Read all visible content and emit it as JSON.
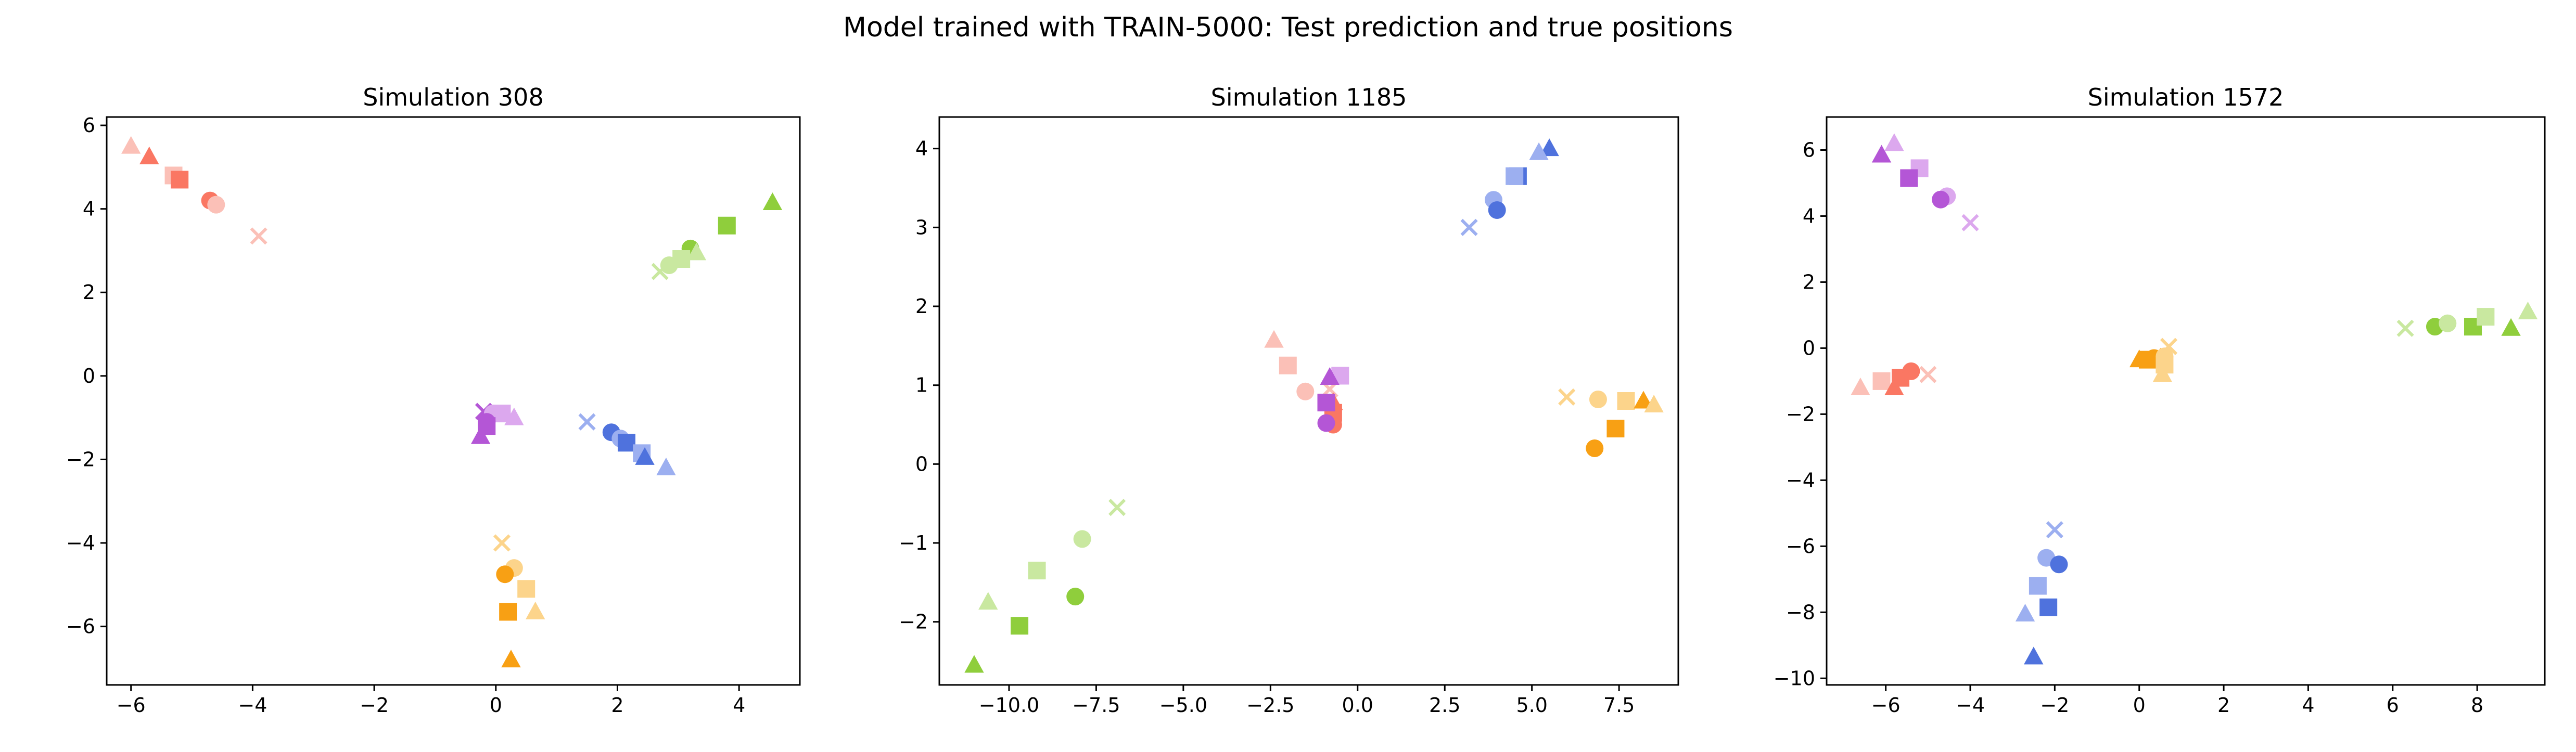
{
  "figure": {
    "title": "Model trained with TRAIN-5000: Test prediction and true positions"
  },
  "colors": {
    "red": [
      "#fa7763",
      "#fbc0b7"
    ],
    "green": [
      "#8fce3c",
      "#c9e8a0"
    ],
    "purple": [
      "#b456d6",
      "#dca8ee"
    ],
    "blue": [
      "#4f72dd",
      "#9caff0"
    ],
    "orange": [
      "#f8a014",
      "#fcd48b"
    ]
  },
  "chart_data": [
    {
      "type": "scatter",
      "title": "Simulation 308",
      "xlim": [
        -6.4,
        5.0
      ],
      "ylim": [
        -7.4,
        6.2
      ],
      "xticks": [
        -6,
        -4,
        -2,
        0,
        2,
        4
      ],
      "yticks": [
        -6,
        -4,
        -2,
        0,
        2,
        4,
        6
      ],
      "xtick_labels": [
        "−6",
        "−4",
        "−2",
        "0",
        "2",
        "4"
      ],
      "ytick_labels": [
        "−6",
        "−4",
        "−2",
        "0",
        "2",
        "4",
        "6"
      ],
      "points": [
        {
          "x": -6.0,
          "y": 5.5,
          "marker": "triangle",
          "color": "red",
          "shade": 1
        },
        {
          "x": -5.7,
          "y": 5.25,
          "marker": "triangle",
          "color": "red",
          "shade": 0
        },
        {
          "x": -5.3,
          "y": 4.8,
          "marker": "square",
          "color": "red",
          "shade": 1
        },
        {
          "x": -5.2,
          "y": 4.7,
          "marker": "square",
          "color": "red",
          "shade": 0
        },
        {
          "x": -4.7,
          "y": 4.2,
          "marker": "circle",
          "color": "red",
          "shade": 0
        },
        {
          "x": -4.6,
          "y": 4.1,
          "marker": "circle",
          "color": "red",
          "shade": 1
        },
        {
          "x": -3.9,
          "y": 3.35,
          "marker": "x",
          "color": "red",
          "shade": 1
        },
        {
          "x": 4.55,
          "y": 4.15,
          "marker": "triangle",
          "color": "green",
          "shade": 0
        },
        {
          "x": 3.8,
          "y": 3.6,
          "marker": "square",
          "color": "green",
          "shade": 0
        },
        {
          "x": 3.2,
          "y": 3.05,
          "marker": "circle",
          "color": "green",
          "shade": 0
        },
        {
          "x": 3.3,
          "y": 2.95,
          "marker": "triangle",
          "color": "green",
          "shade": 1
        },
        {
          "x": 3.05,
          "y": 2.8,
          "marker": "square",
          "color": "green",
          "shade": 1
        },
        {
          "x": 2.85,
          "y": 2.65,
          "marker": "circle",
          "color": "green",
          "shade": 1
        },
        {
          "x": 2.7,
          "y": 2.5,
          "marker": "x",
          "color": "green",
          "shade": 1
        },
        {
          "x": -0.2,
          "y": -0.85,
          "marker": "x",
          "color": "purple",
          "shade": 0
        },
        {
          "x": -0.05,
          "y": -0.9,
          "marker": "circle",
          "color": "purple",
          "shade": 1
        },
        {
          "x": 0.1,
          "y": -0.9,
          "marker": "square",
          "color": "purple",
          "shade": 1
        },
        {
          "x": 0.3,
          "y": -1.0,
          "marker": "triangle",
          "color": "purple",
          "shade": 1
        },
        {
          "x": -0.15,
          "y": -1.1,
          "marker": "circle",
          "color": "purple",
          "shade": 0
        },
        {
          "x": -0.15,
          "y": -1.2,
          "marker": "square",
          "color": "purple",
          "shade": 0
        },
        {
          "x": -0.25,
          "y": -1.45,
          "marker": "triangle",
          "color": "purple",
          "shade": 0
        },
        {
          "x": 1.5,
          "y": -1.1,
          "marker": "x",
          "color": "blue",
          "shade": 1
        },
        {
          "x": 1.9,
          "y": -1.35,
          "marker": "circle",
          "color": "blue",
          "shade": 0
        },
        {
          "x": 2.05,
          "y": -1.5,
          "marker": "circle",
          "color": "blue",
          "shade": 1
        },
        {
          "x": 2.15,
          "y": -1.6,
          "marker": "square",
          "color": "blue",
          "shade": 0
        },
        {
          "x": 2.4,
          "y": -1.85,
          "marker": "square",
          "color": "blue",
          "shade": 1
        },
        {
          "x": 2.45,
          "y": -1.95,
          "marker": "triangle",
          "color": "blue",
          "shade": 0
        },
        {
          "x": 2.8,
          "y": -2.2,
          "marker": "triangle",
          "color": "blue",
          "shade": 1
        },
        {
          "x": 0.1,
          "y": -4.0,
          "marker": "x",
          "color": "orange",
          "shade": 1
        },
        {
          "x": 0.3,
          "y": -4.6,
          "marker": "circle",
          "color": "orange",
          "shade": 1
        },
        {
          "x": 0.15,
          "y": -4.75,
          "marker": "circle",
          "color": "orange",
          "shade": 0
        },
        {
          "x": 0.5,
          "y": -5.1,
          "marker": "square",
          "color": "orange",
          "shade": 1
        },
        {
          "x": 0.2,
          "y": -5.65,
          "marker": "square",
          "color": "orange",
          "shade": 0
        },
        {
          "x": 0.65,
          "y": -5.65,
          "marker": "triangle",
          "color": "orange",
          "shade": 1
        },
        {
          "x": 0.25,
          "y": -6.8,
          "marker": "triangle",
          "color": "orange",
          "shade": 0
        }
      ]
    },
    {
      "type": "scatter",
      "title": "Simulation 1185",
      "xlim": [
        -12.0,
        9.2
      ],
      "ylim": [
        -2.8,
        4.4
      ],
      "xticks": [
        -10,
        -7.5,
        -5,
        -2.5,
        0,
        2.5,
        5,
        7.5
      ],
      "yticks": [
        -2,
        -1,
        0,
        1,
        2,
        3,
        4
      ],
      "xtick_labels": [
        "−10.0",
        "−7.5",
        "−5.0",
        "−2.5",
        "0.0",
        "2.5",
        "5.0",
        "7.5"
      ],
      "ytick_labels": [
        "−2",
        "−1",
        "0",
        "1",
        "2",
        "3",
        "4"
      ],
      "points": [
        {
          "x": 5.5,
          "y": 4.0,
          "marker": "triangle",
          "color": "blue",
          "shade": 0
        },
        {
          "x": 5.2,
          "y": 3.95,
          "marker": "triangle",
          "color": "blue",
          "shade": 1
        },
        {
          "x": 4.6,
          "y": 3.65,
          "marker": "square",
          "color": "blue",
          "shade": 0
        },
        {
          "x": 4.5,
          "y": 3.65,
          "marker": "square",
          "color": "blue",
          "shade": 1
        },
        {
          "x": 3.9,
          "y": 3.35,
          "marker": "circle",
          "color": "blue",
          "shade": 1
        },
        {
          "x": 4.0,
          "y": 3.22,
          "marker": "circle",
          "color": "blue",
          "shade": 0
        },
        {
          "x": 3.2,
          "y": 3.0,
          "marker": "x",
          "color": "blue",
          "shade": 1
        },
        {
          "x": -2.4,
          "y": 1.57,
          "marker": "triangle",
          "color": "red",
          "shade": 1
        },
        {
          "x": -2.0,
          "y": 1.25,
          "marker": "square",
          "color": "red",
          "shade": 1
        },
        {
          "x": -1.5,
          "y": 0.92,
          "marker": "circle",
          "color": "red",
          "shade": 1
        },
        {
          "x": -0.8,
          "y": 0.95,
          "marker": "x",
          "color": "red",
          "shade": 1
        },
        {
          "x": -0.7,
          "y": 0.78,
          "marker": "triangle",
          "color": "red",
          "shade": 0
        },
        {
          "x": -0.7,
          "y": 0.65,
          "marker": "square",
          "color": "red",
          "shade": 0
        },
        {
          "x": -0.7,
          "y": 0.5,
          "marker": "circle",
          "color": "red",
          "shade": 0
        },
        {
          "x": -0.5,
          "y": 1.12,
          "marker": "square",
          "color": "purple",
          "shade": 1
        },
        {
          "x": -0.8,
          "y": 1.1,
          "marker": "triangle",
          "color": "purple",
          "shade": 0
        },
        {
          "x": -0.9,
          "y": 0.78,
          "marker": "square",
          "color": "purple",
          "shade": 0
        },
        {
          "x": -0.9,
          "y": 0.52,
          "marker": "circle",
          "color": "purple",
          "shade": 0
        },
        {
          "x": 6.0,
          "y": 0.85,
          "marker": "x",
          "color": "orange",
          "shade": 1
        },
        {
          "x": 6.9,
          "y": 0.82,
          "marker": "circle",
          "color": "orange",
          "shade": 1
        },
        {
          "x": 7.7,
          "y": 0.8,
          "marker": "square",
          "color": "orange",
          "shade": 1
        },
        {
          "x": 8.2,
          "y": 0.8,
          "marker": "triangle",
          "color": "orange",
          "shade": 0
        },
        {
          "x": 8.5,
          "y": 0.75,
          "marker": "triangle",
          "color": "orange",
          "shade": 1
        },
        {
          "x": 7.4,
          "y": 0.45,
          "marker": "square",
          "color": "orange",
          "shade": 0
        },
        {
          "x": 6.8,
          "y": 0.2,
          "marker": "circle",
          "color": "orange",
          "shade": 0
        },
        {
          "x": -6.9,
          "y": -0.55,
          "marker": "x",
          "color": "green",
          "shade": 1
        },
        {
          "x": -7.9,
          "y": -0.95,
          "marker": "circle",
          "color": "green",
          "shade": 1
        },
        {
          "x": -9.2,
          "y": -1.35,
          "marker": "square",
          "color": "green",
          "shade": 1
        },
        {
          "x": -8.1,
          "y": -1.68,
          "marker": "circle",
          "color": "green",
          "shade": 0
        },
        {
          "x": -10.6,
          "y": -1.75,
          "marker": "triangle",
          "color": "green",
          "shade": 1
        },
        {
          "x": -9.7,
          "y": -2.05,
          "marker": "square",
          "color": "green",
          "shade": 0
        },
        {
          "x": -11.0,
          "y": -2.55,
          "marker": "triangle",
          "color": "green",
          "shade": 0
        }
      ]
    },
    {
      "type": "scatter",
      "title": "Simulation 1572",
      "xlim": [
        -7.4,
        9.6
      ],
      "ylim": [
        -10.2,
        7.0
      ],
      "xticks": [
        -6,
        -4,
        -2,
        0,
        2,
        4,
        6,
        8
      ],
      "yticks": [
        -10,
        -8,
        -6,
        -4,
        -2,
        0,
        2,
        4,
        6
      ],
      "xtick_labels": [
        "−6",
        "−4",
        "−2",
        "0",
        "2",
        "4",
        "6",
        "8"
      ],
      "ytick_labels": [
        "−10",
        "−8",
        "−6",
        "−4",
        "−2",
        "0",
        "2",
        "4",
        "6"
      ],
      "points": [
        {
          "x": -5.8,
          "y": 6.2,
          "marker": "triangle",
          "color": "purple",
          "shade": 1
        },
        {
          "x": -6.1,
          "y": 5.85,
          "marker": "triangle",
          "color": "purple",
          "shade": 0
        },
        {
          "x": -5.2,
          "y": 5.45,
          "marker": "square",
          "color": "purple",
          "shade": 1
        },
        {
          "x": -5.45,
          "y": 5.15,
          "marker": "square",
          "color": "purple",
          "shade": 0
        },
        {
          "x": -4.55,
          "y": 4.6,
          "marker": "circle",
          "color": "purple",
          "shade": 1
        },
        {
          "x": -4.7,
          "y": 4.5,
          "marker": "circle",
          "color": "purple",
          "shade": 0
        },
        {
          "x": -4.0,
          "y": 3.8,
          "marker": "x",
          "color": "purple",
          "shade": 1
        },
        {
          "x": -6.6,
          "y": -1.2,
          "marker": "triangle",
          "color": "red",
          "shade": 1
        },
        {
          "x": -6.1,
          "y": -1.0,
          "marker": "square",
          "color": "red",
          "shade": 1
        },
        {
          "x": -5.8,
          "y": -1.2,
          "marker": "triangle",
          "color": "red",
          "shade": 0
        },
        {
          "x": -5.65,
          "y": -0.9,
          "marker": "square",
          "color": "red",
          "shade": 0
        },
        {
          "x": -5.4,
          "y": -0.7,
          "marker": "circle",
          "color": "red",
          "shade": 0
        },
        {
          "x": -5.0,
          "y": -0.8,
          "marker": "x",
          "color": "red",
          "shade": 1
        },
        {
          "x": 0.0,
          "y": -0.35,
          "marker": "triangle",
          "color": "orange",
          "shade": 0
        },
        {
          "x": 0.2,
          "y": -0.35,
          "marker": "square",
          "color": "orange",
          "shade": 0
        },
        {
          "x": 0.35,
          "y": -0.3,
          "marker": "circle",
          "color": "orange",
          "shade": 0
        },
        {
          "x": 0.5,
          "y": -0.3,
          "marker": "triangle",
          "color": "orange",
          "shade": 0
        },
        {
          "x": 0.7,
          "y": 0.05,
          "marker": "x",
          "color": "orange",
          "shade": 1
        },
        {
          "x": 0.6,
          "y": -0.25,
          "marker": "circle",
          "color": "orange",
          "shade": 1
        },
        {
          "x": 0.6,
          "y": -0.5,
          "marker": "square",
          "color": "orange",
          "shade": 1
        },
        {
          "x": 0.55,
          "y": -0.8,
          "marker": "triangle",
          "color": "orange",
          "shade": 1
        },
        {
          "x": 6.3,
          "y": 0.6,
          "marker": "x",
          "color": "green",
          "shade": 1
        },
        {
          "x": 7.0,
          "y": 0.65,
          "marker": "circle",
          "color": "green",
          "shade": 0
        },
        {
          "x": 7.3,
          "y": 0.75,
          "marker": "circle",
          "color": "green",
          "shade": 1
        },
        {
          "x": 7.9,
          "y": 0.65,
          "marker": "square",
          "color": "green",
          "shade": 0
        },
        {
          "x": 8.2,
          "y": 0.95,
          "marker": "square",
          "color": "green",
          "shade": 1
        },
        {
          "x": 8.8,
          "y": 0.6,
          "marker": "triangle",
          "color": "green",
          "shade": 0
        },
        {
          "x": 9.2,
          "y": 1.1,
          "marker": "triangle",
          "color": "green",
          "shade": 1
        },
        {
          "x": -2.0,
          "y": -5.5,
          "marker": "x",
          "color": "blue",
          "shade": 1
        },
        {
          "x": -2.2,
          "y": -6.35,
          "marker": "circle",
          "color": "blue",
          "shade": 1
        },
        {
          "x": -1.9,
          "y": -6.55,
          "marker": "circle",
          "color": "blue",
          "shade": 0
        },
        {
          "x": -2.4,
          "y": -7.2,
          "marker": "square",
          "color": "blue",
          "shade": 1
        },
        {
          "x": -2.15,
          "y": -7.85,
          "marker": "square",
          "color": "blue",
          "shade": 0
        },
        {
          "x": -2.7,
          "y": -8.05,
          "marker": "triangle",
          "color": "blue",
          "shade": 1
        },
        {
          "x": -2.5,
          "y": -9.35,
          "marker": "triangle",
          "color": "blue",
          "shade": 0
        }
      ]
    }
  ]
}
